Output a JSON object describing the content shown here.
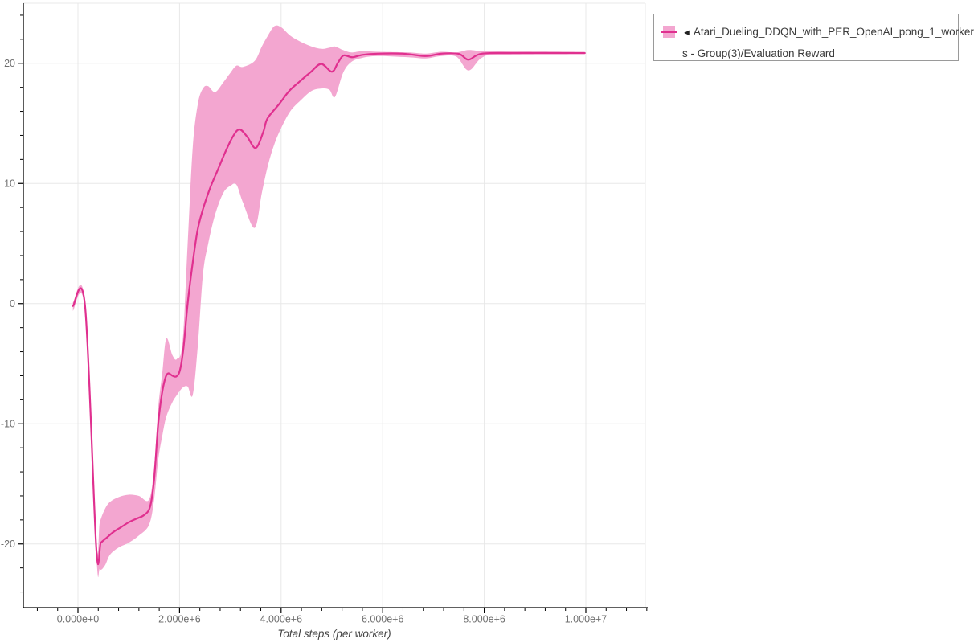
{
  "legend": {
    "marker": "◄",
    "series_name_lines": [
      "Atari_Dueling_DDQN_with_PER_OpenAI_pong_1_worker",
      "s - Group(3)/Evaluation Reward"
    ],
    "full_series_name": "Atari_Dueling_DDQN_with_PER_OpenAI_pong_1_workers - Group(3)/Evaluation Reward"
  },
  "colors": {
    "line": "#e0308f",
    "band": "#f3a6d0",
    "grid": "#e8e8e8",
    "axis": "#000000",
    "tick_label": "#6f6f6f",
    "axis_title": "#444444",
    "legend_border": "#9a9a9a",
    "legend_text": "#3a3a3a",
    "background": "#ffffff"
  },
  "chart_data": {
    "type": "line",
    "title": "",
    "xlabel": "Total steps (per worker)",
    "ylabel": "",
    "grid": true,
    "legend_position": "top-right-outside",
    "x_domain": [
      -1076000,
      11171000
    ],
    "y_domain": [
      -25.3,
      25
    ],
    "x_minor_step": 400000,
    "y_minor_step": 2,
    "x_ticks": [
      {
        "value": 0,
        "label": "0.000e+0"
      },
      {
        "value": 2000000,
        "label": "2.000e+6"
      },
      {
        "value": 4000000,
        "label": "4.000e+6"
      },
      {
        "value": 6000000,
        "label": "6.000e+6"
      },
      {
        "value": 8000000,
        "label": "8.000e+6"
      },
      {
        "value": 10000000,
        "label": "1.000e+7"
      }
    ],
    "y_ticks": [
      {
        "value": -20,
        "label": "-20"
      },
      {
        "value": -10,
        "label": "-10"
      },
      {
        "value": 0,
        "label": "0"
      },
      {
        "value": 10,
        "label": "10"
      },
      {
        "value": 20,
        "label": "20"
      }
    ],
    "series": [
      {
        "name": "Atari_Dueling_DDQN_with_PER_OpenAI_pong_1_workers - Group(3)/Evaluation Reward",
        "line_color": "#e0308f",
        "band_color": "#f3a6d0",
        "mean": [
          [
            -100000,
            -0.2
          ],
          [
            140000,
            -0.2
          ],
          [
            360000,
            -20.3
          ],
          [
            450000,
            -19.9
          ],
          [
            560000,
            -19.5
          ],
          [
            700000,
            -19.0
          ],
          [
            850000,
            -18.6
          ],
          [
            1000000,
            -18.2
          ],
          [
            1150000,
            -17.9
          ],
          [
            1300000,
            -17.6
          ],
          [
            1420000,
            -16.9
          ],
          [
            1500000,
            -14.6
          ],
          [
            1580000,
            -10.0
          ],
          [
            1650000,
            -7.6
          ],
          [
            1720000,
            -6.2
          ],
          [
            1780000,
            -5.8
          ],
          [
            1860000,
            -6.0
          ],
          [
            1940000,
            -6.05
          ],
          [
            2010000,
            -5.5
          ],
          [
            2080000,
            -3.6
          ],
          [
            2160000,
            0.0
          ],
          [
            2250000,
            3.1
          ],
          [
            2350000,
            6.0
          ],
          [
            2450000,
            7.7
          ],
          [
            2600000,
            9.6
          ],
          [
            2750000,
            11.1
          ],
          [
            2900000,
            12.6
          ],
          [
            3050000,
            13.9
          ],
          [
            3180000,
            14.5
          ],
          [
            3330000,
            13.9
          ],
          [
            3500000,
            12.95
          ],
          [
            3650000,
            14.3
          ],
          [
            3730000,
            15.4
          ],
          [
            3960000,
            16.6
          ],
          [
            4160000,
            17.7
          ],
          [
            4370000,
            18.5
          ],
          [
            4590000,
            19.3
          ],
          [
            4790000,
            19.95
          ],
          [
            5000000,
            19.3
          ],
          [
            5120000,
            20.05
          ],
          [
            5230000,
            20.65
          ],
          [
            5400000,
            20.5
          ],
          [
            5600000,
            20.7
          ],
          [
            5900000,
            20.8
          ],
          [
            6400000,
            20.8
          ],
          [
            6850000,
            20.6
          ],
          [
            7150000,
            20.8
          ],
          [
            7500000,
            20.78
          ],
          [
            7690000,
            20.3
          ],
          [
            7950000,
            20.8
          ],
          [
            8600000,
            20.85
          ],
          [
            9980000,
            20.85
          ]
        ],
        "band": [
          [
            -100000,
            -0.6,
            0.1
          ],
          [
            140000,
            -0.6,
            0.1
          ],
          [
            360000,
            -20.8,
            -19.7
          ],
          [
            430000,
            -22.1,
            -18.2
          ],
          [
            530000,
            -21.8,
            -17.1
          ],
          [
            630000,
            -20.9,
            -16.5
          ],
          [
            800000,
            -20.3,
            -16.1
          ],
          [
            1000000,
            -19.9,
            -15.9
          ],
          [
            1200000,
            -19.3,
            -16.0
          ],
          [
            1400000,
            -18.4,
            -16.3
          ],
          [
            1500000,
            -16.3,
            -13.6
          ],
          [
            1580000,
            -13.0,
            -8.7
          ],
          [
            1660000,
            -11.0,
            -5.8
          ],
          [
            1740000,
            -9.4,
            -2.9
          ],
          [
            1860000,
            -8.2,
            -4.3
          ],
          [
            1950000,
            -7.6,
            -4.6
          ],
          [
            2060000,
            -7.0,
            -3.2
          ],
          [
            2160000,
            -6.9,
            5.0
          ],
          [
            2260000,
            -7.6,
            13.0
          ],
          [
            2360000,
            -3.5,
            16.6
          ],
          [
            2460000,
            2.4,
            17.9
          ],
          [
            2560000,
            4.9,
            18.1
          ],
          [
            2700000,
            7.4,
            17.6
          ],
          [
            2860000,
            9.2,
            18.4
          ],
          [
            3000000,
            9.8,
            19.2
          ],
          [
            3120000,
            9.9,
            19.8
          ],
          [
            3250000,
            8.4,
            19.7
          ],
          [
            3480000,
            6.3,
            20.2
          ],
          [
            3620000,
            9.2,
            21.4
          ],
          [
            3740000,
            11.5,
            22.3
          ],
          [
            3870000,
            13.3,
            23.1
          ],
          [
            4000000,
            14.6,
            23.0
          ],
          [
            4180000,
            16.0,
            22.3
          ],
          [
            4380000,
            16.9,
            21.8
          ],
          [
            4600000,
            17.7,
            21.4
          ],
          [
            4800000,
            17.9,
            21.2
          ],
          [
            4950000,
            17.8,
            21.3
          ],
          [
            5060000,
            17.2,
            21.4
          ],
          [
            5220000,
            19.2,
            21.1
          ],
          [
            5380000,
            20.1,
            20.9
          ],
          [
            5600000,
            20.45,
            21.0
          ],
          [
            5900000,
            20.6,
            20.95
          ],
          [
            6500000,
            20.5,
            20.9
          ],
          [
            6850000,
            20.4,
            20.8
          ],
          [
            7150000,
            20.6,
            20.95
          ],
          [
            7450000,
            20.55,
            20.9
          ],
          [
            7690000,
            19.4,
            21.1
          ],
          [
            7950000,
            20.45,
            21.0
          ],
          [
            8300000,
            20.7,
            21.0
          ],
          [
            9980000,
            20.75,
            20.95
          ]
        ]
      }
    ]
  }
}
